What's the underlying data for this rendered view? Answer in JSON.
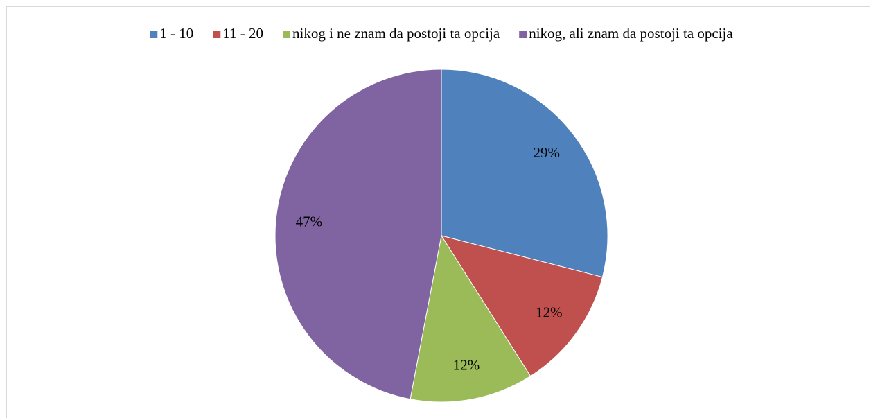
{
  "chart_data": {
    "type": "pie",
    "categories": [
      "1 - 10",
      "11 - 20",
      "nikog i ne znam da postoji ta opcija",
      "nikog, ali znam da postoji ta opcija"
    ],
    "values": [
      29,
      12,
      12,
      47
    ],
    "value_labels": [
      "29%",
      "12%",
      "12%",
      "47%"
    ],
    "colors": [
      "#4f81bd",
      "#c0504d",
      "#9bbb59",
      "#8064a2"
    ],
    "legend": "top"
  }
}
